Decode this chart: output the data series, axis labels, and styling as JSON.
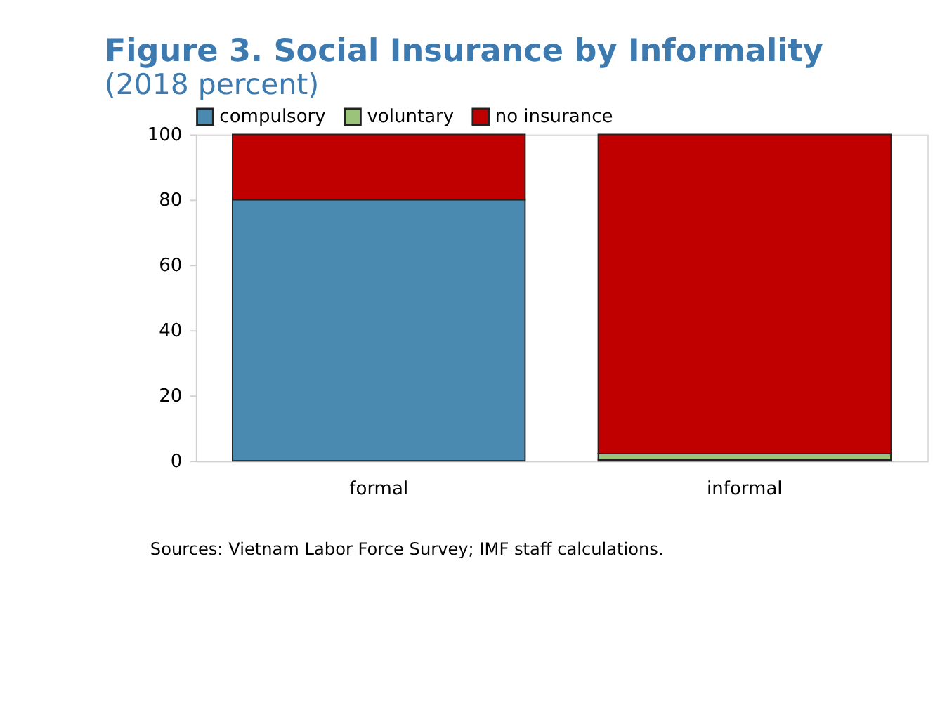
{
  "chart_data": {
    "type": "bar",
    "stacked": true,
    "title": "Figure 3. Social Insurance by Informality",
    "subtitle": "(2018 percent)",
    "categories": [
      "formal",
      "informal"
    ],
    "series": [
      {
        "name": "compulsory",
        "color": "#4a8ab0",
        "values": [
          80,
          0.4
        ]
      },
      {
        "name": "voluntary",
        "color": "#9bc47a",
        "values": [
          0,
          1.8
        ]
      },
      {
        "name": "no insurance",
        "color": "#c00000",
        "values": [
          20,
          97.8
        ]
      }
    ],
    "ylim": [
      0,
      100
    ],
    "yticks": [
      0,
      20,
      40,
      60,
      80,
      100
    ],
    "grid": false,
    "legend": "top",
    "annotations": [
      "Sources: Vietnam Labor Force Survey; IMF staff calculations."
    ]
  }
}
